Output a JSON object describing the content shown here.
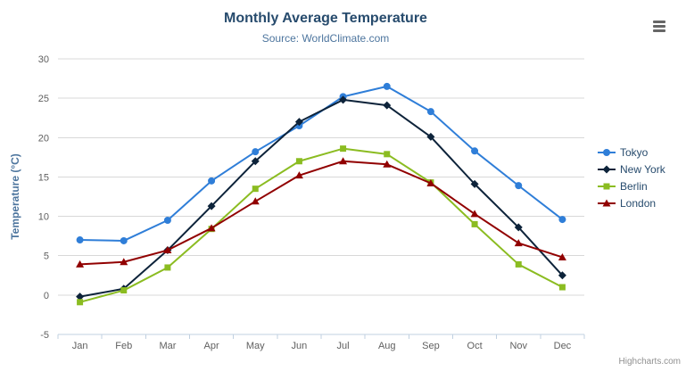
{
  "chart": {
    "title": "Monthly Average Temperature",
    "subtitle": "Source: WorldClimate.com",
    "credits": "Highcharts.com",
    "export_button_icon": "hamburger-icon"
  },
  "chart_data": {
    "type": "line",
    "title": "Monthly Average Temperature",
    "subtitle": "Source: WorldClimate.com",
    "categories": [
      "Jan",
      "Feb",
      "Mar",
      "Apr",
      "May",
      "Jun",
      "Jul",
      "Aug",
      "Sep",
      "Oct",
      "Nov",
      "Dec"
    ],
    "xlabel": "",
    "ylabel": "Temperature (°C)",
    "ylim": [
      -5,
      30
    ],
    "yticks": [
      -5,
      0,
      5,
      10,
      15,
      20,
      25,
      30
    ],
    "grid": true,
    "legend_position": "right",
    "colors": {
      "grid_line": "#d8d8d8",
      "axis_line": "#c0d0e0",
      "tick_label": "#606060",
      "axis_title": "#4d759e",
      "title_text": "#274b6d"
    },
    "series": [
      {
        "name": "Tokyo",
        "color": "#2f7ed8",
        "marker": "circle",
        "values": [
          7.0,
          6.9,
          9.5,
          14.5,
          18.2,
          21.5,
          25.2,
          26.5,
          23.3,
          18.3,
          13.9,
          9.6
        ]
      },
      {
        "name": "New York",
        "color": "#0d233a",
        "marker": "diamond",
        "values": [
          -0.2,
          0.8,
          5.7,
          11.3,
          17.0,
          22.0,
          24.8,
          24.1,
          20.1,
          14.1,
          8.6,
          2.5
        ]
      },
      {
        "name": "Berlin",
        "color": "#8bbc21",
        "marker": "square",
        "values": [
          -0.9,
          0.6,
          3.5,
          8.4,
          13.5,
          17.0,
          18.6,
          17.9,
          14.3,
          9.0,
          3.9,
          1.0
        ]
      },
      {
        "name": "London",
        "color": "#910000",
        "marker": "triangle-up",
        "values": [
          3.9,
          4.2,
          5.7,
          8.5,
          11.9,
          15.2,
          17.0,
          16.6,
          14.2,
          10.3,
          6.6,
          4.8
        ]
      }
    ]
  }
}
